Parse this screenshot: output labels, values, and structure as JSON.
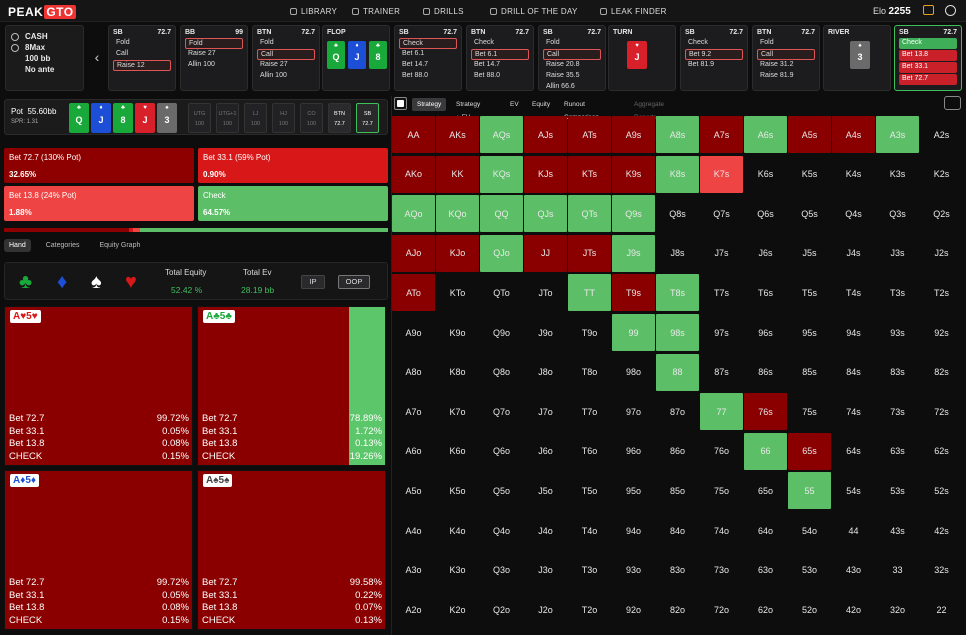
{
  "topbar": {
    "logo": "PEAK",
    "logo_accent": "GTO",
    "nav": [
      {
        "label": "LIBRARY"
      },
      {
        "label": "TRAINER"
      },
      {
        "label": "DRILLS"
      },
      {
        "label": "DRILL OF THE DAY"
      },
      {
        "label": "LEAK FINDER"
      }
    ],
    "elo_label": "Elo",
    "elo_value": "2255"
  },
  "game_info": {
    "type": "CASH",
    "table": "8Max",
    "stack": "100 bb",
    "ante": "No ante"
  },
  "action_cards": [
    {
      "pos": "SB",
      "stack": "72.7",
      "opts": [
        {
          "t": "Fold"
        },
        {
          "t": "Call"
        },
        {
          "t": "Raise 12",
          "sel": true
        }
      ]
    },
    {
      "pos": "BB",
      "stack": "99",
      "opts": [
        {
          "t": "Fold",
          "sel": true
        },
        {
          "t": "Raise 27"
        },
        {
          "t": "Allin 100"
        }
      ]
    },
    {
      "pos": "BTN",
      "stack": "72.7",
      "opts": [
        {
          "t": "Fold"
        },
        {
          "t": "Call",
          "sel": true
        },
        {
          "t": "Raise 27"
        },
        {
          "t": "Allin 100"
        }
      ]
    },
    {
      "pos": "SB",
      "stack": "72.7",
      "opts": [
        {
          "t": "Check",
          "sel": true
        },
        {
          "t": "Bet 6.1"
        },
        {
          "t": "Bet 14.7"
        },
        {
          "t": "Bet 88.0"
        }
      ]
    },
    {
      "pos": "BTN",
      "stack": "72.7",
      "opts": [
        {
          "t": "Check"
        },
        {
          "t": "Bet 6.1",
          "sel": true
        },
        {
          "t": "Bet 14.7"
        },
        {
          "t": "Bet 88.0"
        }
      ]
    },
    {
      "pos": "SB",
      "stack": "72.7",
      "opts": [
        {
          "t": "Fold"
        },
        {
          "t": "Call",
          "sel": true
        },
        {
          "t": "Raise 20.8"
        },
        {
          "t": "Raise 35.5"
        },
        {
          "t": "Allin 66.6"
        }
      ]
    },
    {
      "pos": "SB",
      "stack": "72.7",
      "opts": [
        {
          "t": "Check"
        },
        {
          "t": "Bet 9.2",
          "sel": true
        },
        {
          "t": "Bet 81.9"
        }
      ]
    },
    {
      "pos": "BTN",
      "stack": "72.7",
      "opts": [
        {
          "t": "Fold"
        },
        {
          "t": "Call",
          "sel": true
        },
        {
          "t": "Raise 31.2"
        },
        {
          "t": "Raise 81.9"
        }
      ]
    }
  ],
  "active_card": {
    "pos": "SB",
    "stack": "72.7",
    "opts": [
      "Check",
      "Bet 13.8",
      "Bet 33.1",
      "Bet 72.7"
    ]
  },
  "streets": {
    "flop": "FLOP",
    "turn": "TURN",
    "river": "RIVER"
  },
  "board": {
    "flop": [
      {
        "r": "Q",
        "s": "♣",
        "c": "green"
      },
      {
        "r": "J",
        "s": "♦",
        "c": "blue"
      },
      {
        "r": "8",
        "s": "♣",
        "c": "green"
      }
    ],
    "turn": [
      {
        "r": "J",
        "s": "♥",
        "c": "red"
      }
    ],
    "river": [
      {
        "r": "3",
        "s": "♠",
        "c": "gray"
      }
    ],
    "pot_board": [
      {
        "r": "Q",
        "s": "♣",
        "c": "green"
      },
      {
        "r": "J",
        "s": "♦",
        "c": "blue"
      },
      {
        "r": "8",
        "s": "♣",
        "c": "green"
      },
      {
        "r": "J",
        "s": "♥",
        "c": "red"
      },
      {
        "r": "3",
        "s": "♠",
        "c": "gray"
      }
    ]
  },
  "pot": {
    "label": "Pot",
    "value": "55.60bb",
    "spr": "SPR: 1.31"
  },
  "positions": [
    {
      "p": "UTG",
      "v": "100"
    },
    {
      "p": "UTG+1",
      "v": "100"
    },
    {
      "p": "LJ",
      "v": "100"
    },
    {
      "p": "HJ",
      "v": "100"
    },
    {
      "p": "CO",
      "v": "100"
    },
    {
      "p": "BTN",
      "v": "72.7"
    },
    {
      "p": "SB",
      "v": "72.7"
    }
  ],
  "actions": [
    {
      "name": "Bet 72.7 (130% Pot)",
      "pct": "32.65%",
      "color": "#8e0000"
    },
    {
      "name": "Bet 33.1 (59% Pot)",
      "pct": "0.90%",
      "color": "#d81818"
    },
    {
      "name": "Bet 13.8 (24% Pot)",
      "pct": "1.88%",
      "color": "#ee4444"
    },
    {
      "name": "Check",
      "pct": "64.57%",
      "color": "#5cbf67"
    }
  ],
  "tabs": [
    "Hand",
    "Categories",
    "Equity Graph"
  ],
  "equity": {
    "label": "Total Equity",
    "value": "52.42 %",
    "ev_label": "Total Ev",
    "ev_value": "28.19 bb",
    "ip": "IP",
    "oop": "OOP"
  },
  "combos": [
    {
      "label": "A♥5♥",
      "lab_color": "#d81818",
      "check_frac": 0.0015,
      "rows": [
        [
          "Bet 72.7",
          "99.72%"
        ],
        [
          "Bet 33.1",
          "0.05%"
        ],
        [
          "Bet 13.8",
          "0.08%"
        ],
        [
          "CHECK",
          "0.15%"
        ]
      ]
    },
    {
      "label": "A♣5♣",
      "lab_color": "#19a83a",
      "check_frac": 0.1926,
      "rows": [
        [
          "Bet 72.7",
          "78.89%"
        ],
        [
          "Bet 33.1",
          "1.72%"
        ],
        [
          "Bet 13.8",
          "0.13%"
        ],
        [
          "CHECK",
          "19.26%"
        ]
      ]
    },
    {
      "label": "A♦5♦",
      "lab_color": "#1d4fd6",
      "check_frac": 0.0015,
      "rows": [
        [
          "Bet 72.7",
          "99.72%"
        ],
        [
          "Bet 33.1",
          "0.05%"
        ],
        [
          "Bet 13.8",
          "0.08%"
        ],
        [
          "CHECK",
          "0.15%"
        ]
      ]
    },
    {
      "label": "A♠5♠",
      "lab_color": "#444444",
      "check_frac": 0.0013,
      "rows": [
        [
          "Bet 72.7",
          "99.58%"
        ],
        [
          "Bet 33.1",
          "0.22%"
        ],
        [
          "Bet 13.8",
          "0.07%"
        ],
        [
          "CHECK",
          "0.13%"
        ]
      ]
    }
  ],
  "right_tabs": [
    "Strategy",
    "Strategy + EV",
    "EV",
    "Equity",
    "Runout Comparison",
    "Aggregate Reports"
  ],
  "ranks": [
    "A",
    "K",
    "Q",
    "J",
    "T",
    "9",
    "8",
    "7",
    "6",
    "5",
    "4",
    "3",
    "2"
  ],
  "matrix_colored": {
    "AA": "r",
    "AKs": "r",
    "AQs": "g",
    "AJs": "r",
    "ATs": "r",
    "A9s": "r",
    "A8s": "g",
    "A7s": "r",
    "A6s": "g",
    "A5s": "r",
    "A4s": "r",
    "A3s": "g",
    "AKo": "r",
    "KK": "r",
    "KQs": "g",
    "KJs": "r",
    "KTs": "r",
    "K9s": "r",
    "K8s": "g",
    "K7s": "R",
    "AQo": "g",
    "KQo": "g",
    "QQ": "g",
    "QJs": "g",
    "QTs": "g",
    "Q9s": "g",
    "AJo": "r",
    "KJo": "r",
    "QJo": "g",
    "JJ": "r",
    "JTs": "r",
    "J9s": "g",
    "ATo": "r",
    "TT": "g",
    "T9s": "r",
    "T8s": "g",
    "99": "g",
    "98s": "g",
    "88": "g",
    "77": "g",
    "76s": "r",
    "66": "g",
    "65s": "r",
    "55": "g"
  }
}
